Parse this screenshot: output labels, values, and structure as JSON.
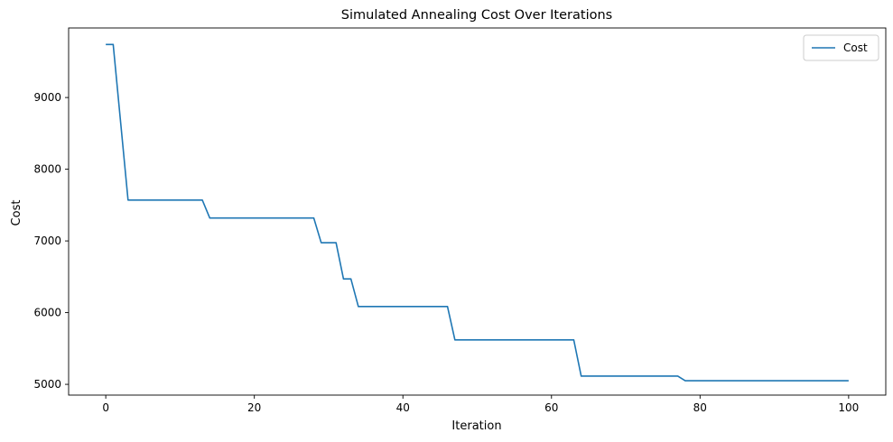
{
  "chart_data": {
    "type": "line",
    "title": "Simulated Annealing Cost Over Iterations",
    "xlabel": "Iteration",
    "ylabel": "Cost",
    "xlim": [
      -5,
      105
    ],
    "ylim": [
      4850,
      9970
    ],
    "xticks": [
      0,
      20,
      40,
      60,
      80,
      100
    ],
    "yticks": [
      5000,
      6000,
      7000,
      8000,
      9000
    ],
    "grid": false,
    "legend": "top-right",
    "series": [
      {
        "name": "Cost",
        "color": "#1f77b4",
        "points": [
          [
            0,
            9740
          ],
          [
            1,
            9740
          ],
          [
            3,
            7570
          ],
          [
            13,
            7570
          ],
          [
            14,
            7320
          ],
          [
            28,
            7320
          ],
          [
            29,
            6975
          ],
          [
            31,
            6975
          ],
          [
            32,
            6470
          ],
          [
            33,
            6470
          ],
          [
            34,
            6085
          ],
          [
            46,
            6085
          ],
          [
            47,
            5620
          ],
          [
            63,
            5620
          ],
          [
            64,
            5115
          ],
          [
            77,
            5115
          ],
          [
            78,
            5050
          ],
          [
            100,
            5050
          ]
        ]
      }
    ]
  }
}
